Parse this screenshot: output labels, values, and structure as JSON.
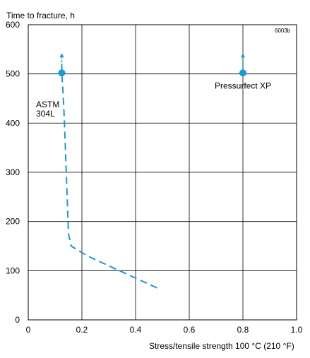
{
  "chart_data": {
    "type": "line",
    "ylabel": "Time to fracture, h",
    "xlabel": "Stress/tensile strength 100   °C (210 °F)",
    "figure_code": "6003b",
    "xlim": [
      0,
      1.0
    ],
    "ylim": [
      0,
      600
    ],
    "x_ticks": [
      0,
      0.2,
      0.4,
      0.6,
      0.8,
      1.0
    ],
    "x_tick_labels": [
      "0",
      "0.2",
      "0.4",
      "0.6",
      "0.8",
      "1.0"
    ],
    "y_ticks": [
      0,
      100,
      200,
      300,
      400,
      500,
      600
    ],
    "y_tick_labels": [
      "0",
      "100",
      "200",
      "300",
      "400",
      "500",
      "600"
    ],
    "grid": true,
    "colors": {
      "series": "#1a9ad6",
      "grid": "#000000",
      "text": "#000000"
    },
    "series": [
      {
        "name": "ASTM 304L",
        "label_lines": [
          "ASTM",
          "304L"
        ],
        "style": "dashed",
        "x": [
          0.48,
          0.38,
          0.3,
          0.22,
          0.16,
          0.15,
          0.145,
          0.14,
          0.135,
          0.13,
          0.125,
          0.125
        ],
        "y": [
          65,
          90,
          110,
          130,
          150,
          175,
          250,
          325,
          400,
          460,
          500,
          525
        ],
        "runout_point": {
          "x": 0.125,
          "y": 502
        },
        "runout_arrow": true
      },
      {
        "name": "Pressurfect XP",
        "label_lines": [
          "Pressurfect XP"
        ],
        "style": "point",
        "x": [
          0.8
        ],
        "y": [
          502
        ],
        "runout_arrow": true
      }
    ]
  }
}
